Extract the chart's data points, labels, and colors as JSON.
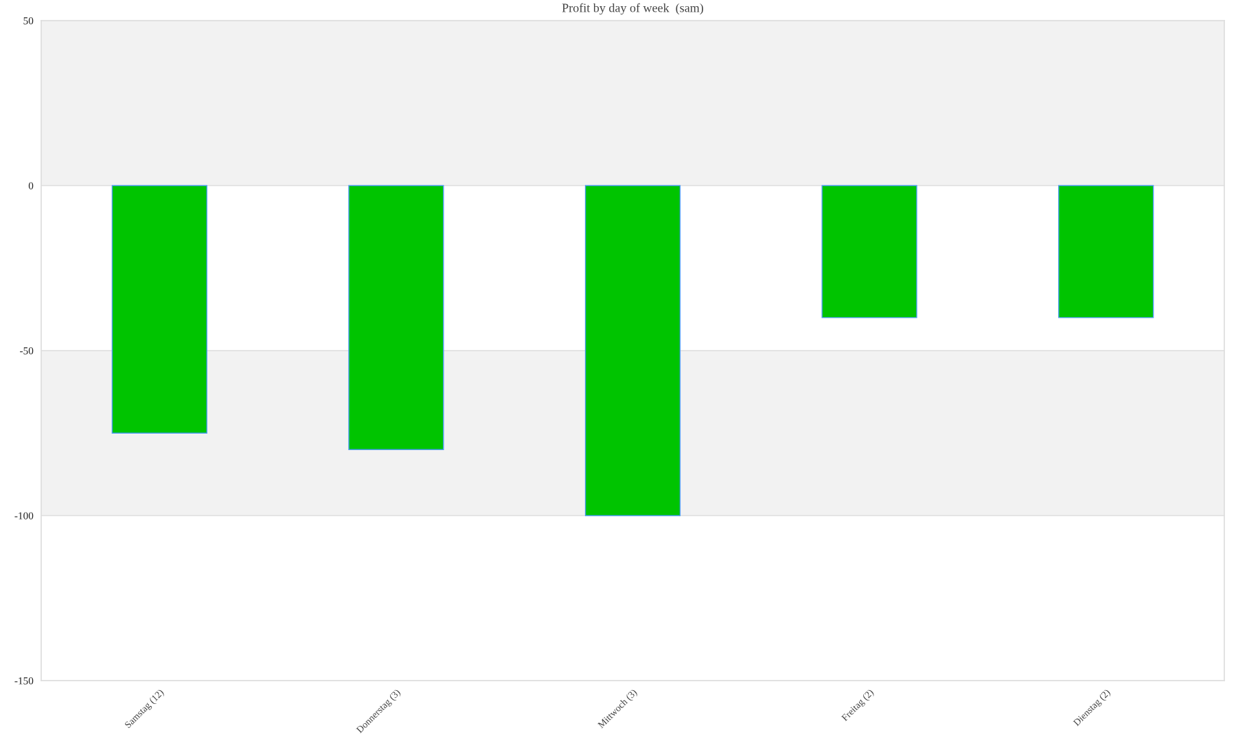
{
  "chart_data": {
    "type": "bar",
    "title": "Profit by day of week  (sam)",
    "categories": [
      "Samstag (12)",
      "Donnerstag (3)",
      "Mittwoch (3)",
      "Freitag (2)",
      "Dienstag (2)"
    ],
    "values": [
      -75,
      -80,
      -100,
      -40,
      -40
    ],
    "color": "#00c400",
    "ylim": [
      -150,
      50
    ],
    "yticks": [
      -150,
      -100,
      -50,
      0,
      50
    ],
    "grid": "y",
    "bands": [
      {
        "axis": "y",
        "from": 0,
        "to": 50,
        "color": "#f2f2f2"
      },
      {
        "axis": "y",
        "from": -100,
        "to": -50,
        "color": "#f2f2f2"
      }
    ]
  }
}
